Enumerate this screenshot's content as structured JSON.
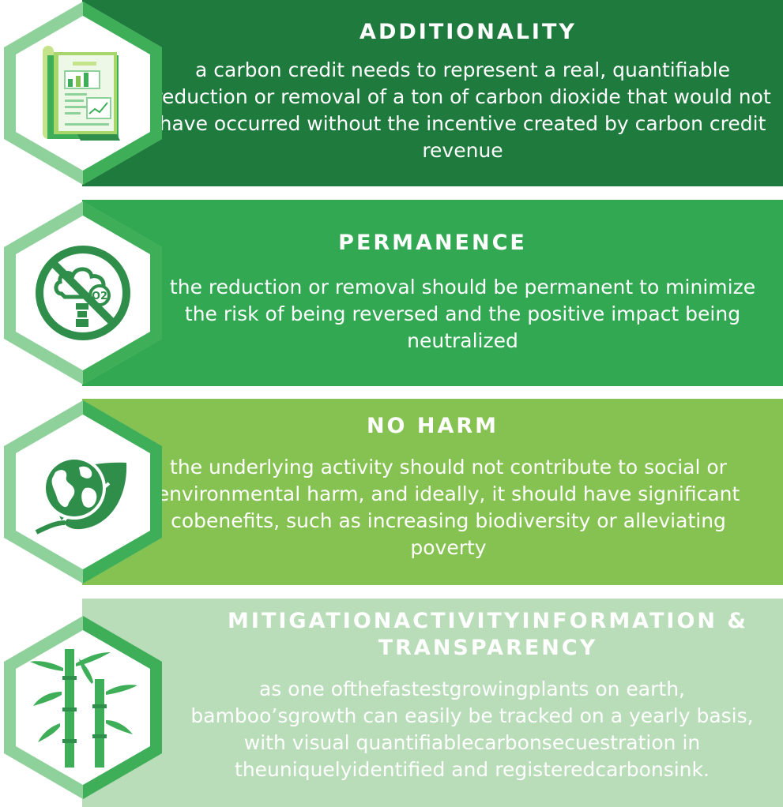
{
  "colors": {
    "panel1": "#1f7a3d",
    "panel2": "#32a853",
    "panel3": "#85c252",
    "panel4": "#b9ddb9",
    "hex_outer_light": "#8fd19b",
    "hex_outer_dark": "#3fae59",
    "icon_green": "#2f8f4a"
  },
  "sections": [
    {
      "title": "ADDITIONALITY",
      "body": "a carbon credit needs to represent a real, quantifiable reduction or removal of a ton of carbon dioxide that would not have occurred without the incentive created by carbon credit revenue",
      "icon": "report-document-icon"
    },
    {
      "title": "PERMANENCE",
      "body": "the reduction or removal should be permanent to minimize the risk of being reversed and the positive impact being neutralized",
      "icon": "no-co2-icon",
      "icon_text": "O2"
    },
    {
      "title": "NO HARM",
      "body": "the underlying activity should not contribute to social or environmental harm, and ideally, it should have significant cobenefits, such as increasing biodiversity or alleviating poverty",
      "icon": "earth-leaf-icon"
    },
    {
      "title": "MITIGATIONACTIVITYINFORMATION & TRANSPARENCY",
      "body": "as one ofthefastestgrowingplants on earth, bamboo’sgrowth can easily be tracked on a yearly basis, with visual quantifiablecarbonsecuestration in theuniquelyidentified and registeredcarbonsink.",
      "icon": "bamboo-icon"
    }
  ]
}
